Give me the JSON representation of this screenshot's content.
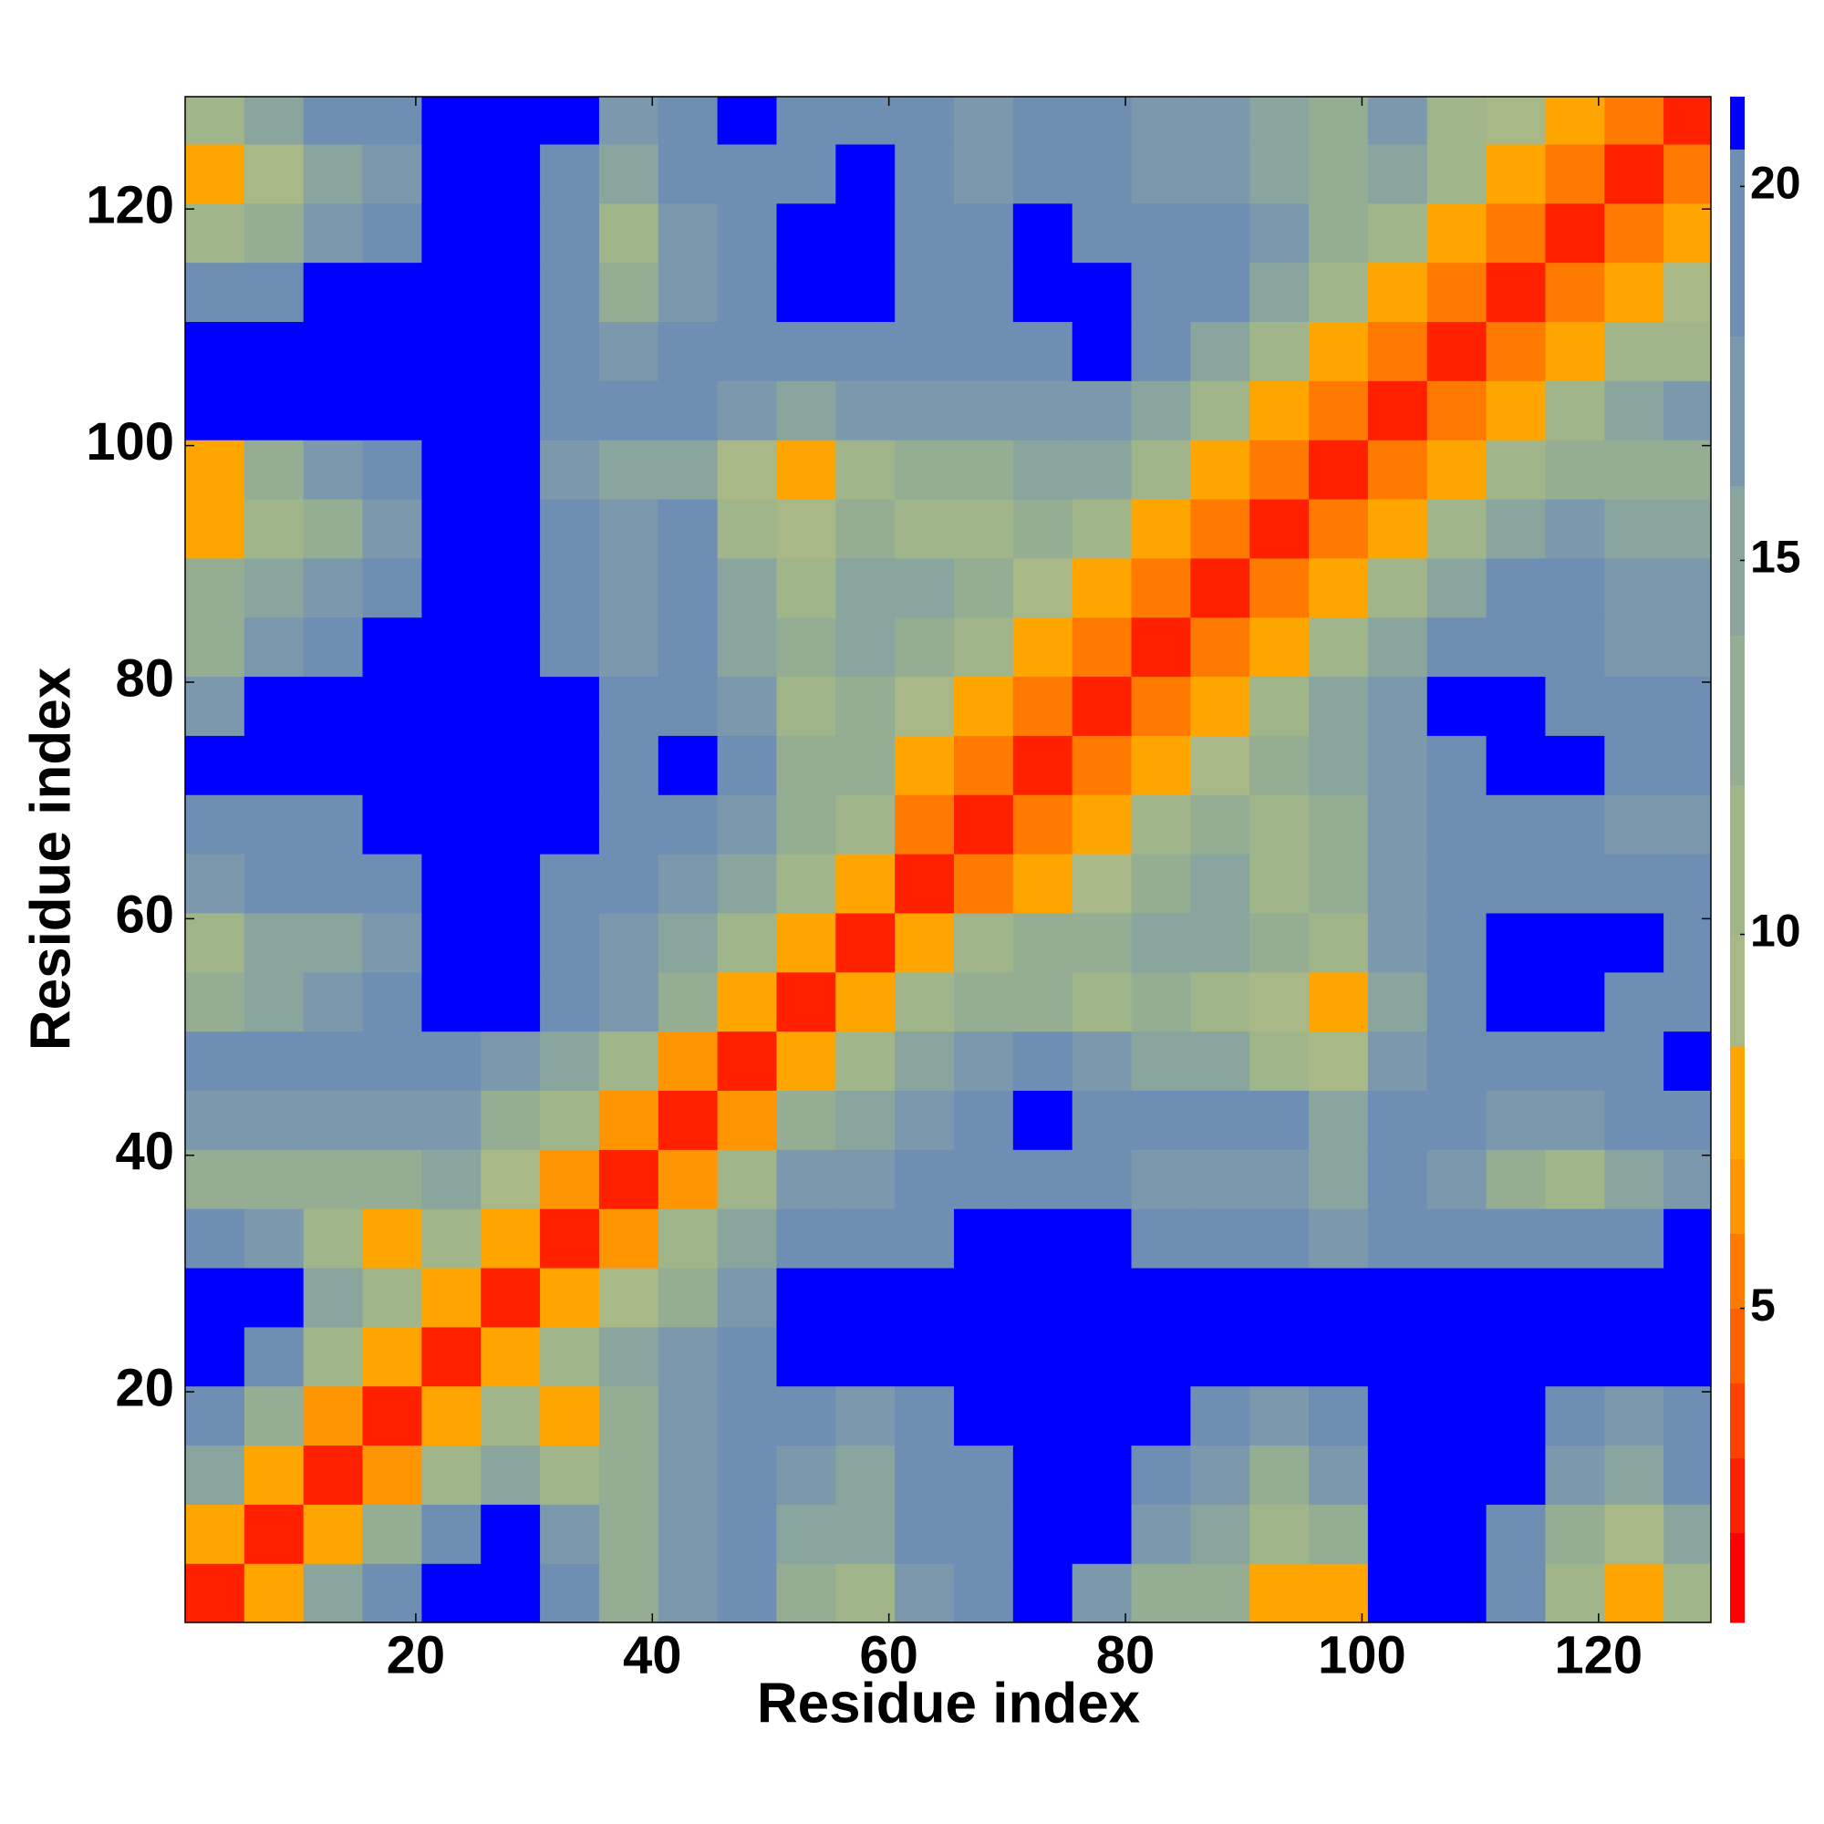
{
  "chart_data": {
    "type": "heatmap",
    "xlabel": "Residue index",
    "ylabel": "Residue index",
    "x": [
      3,
      8,
      13,
      18,
      23,
      28,
      33,
      38,
      43,
      48,
      53,
      58,
      63,
      68,
      73,
      78,
      83,
      88,
      93,
      98,
      103,
      108,
      113,
      118,
      123,
      128
    ],
    "y": [
      3,
      8,
      13,
      18,
      23,
      28,
      33,
      38,
      43,
      48,
      53,
      58,
      63,
      68,
      73,
      78,
      83,
      88,
      93,
      98,
      103,
      108,
      113,
      118,
      123,
      128
    ],
    "xlim": [
      0.5,
      129.5
    ],
    "ylim": [
      0.5,
      129.5
    ],
    "xticks": [
      20,
      40,
      60,
      80,
      100,
      120
    ],
    "yticks": [
      20,
      40,
      60,
      80,
      100,
      120
    ],
    "zlim": [
      0.8,
      21.2
    ],
    "colorbar_ticks": [
      5,
      10,
      15,
      20
    ],
    "levels": [
      0.8,
      2,
      3,
      4,
      5,
      6,
      7,
      8.5,
      10,
      12,
      14,
      16,
      18,
      20.5,
      21.2
    ],
    "colors": [
      "#ff0000",
      "#ff2000",
      "#ff4000",
      "#ff6000",
      "#ff7a00",
      "#ff9500",
      "#ffa500",
      "#a9b887",
      "#a0b58a",
      "#95ad92",
      "#8aa59d",
      "#7b98ac",
      "#6e8eb4",
      "#0000ff"
    ],
    "z": [
      [
        2,
        7,
        15,
        18,
        22,
        22,
        18,
        12,
        16,
        20,
        13,
        11,
        16,
        18,
        21,
        17,
        13,
        12,
        7,
        8,
        22,
        22,
        18,
        11,
        7,
        11
      ],
      [
        7,
        2,
        7,
        12,
        20,
        22,
        17,
        13,
        17,
        20,
        15,
        14,
        18,
        20,
        22,
        21,
        16,
        14,
        10,
        12,
        22,
        22,
        20,
        13,
        9,
        14
      ],
      [
        15,
        7,
        2,
        6,
        10,
        15,
        10,
        12,
        16,
        20,
        16,
        15,
        18,
        20,
        22,
        22,
        20,
        17,
        13,
        16,
        22,
        22,
        22,
        17,
        14,
        18
      ],
      [
        18,
        12,
        6,
        2,
        7,
        10,
        8,
        13,
        17,
        20,
        18,
        17,
        18,
        21,
        22,
        22,
        22,
        20,
        17,
        18,
        22,
        22,
        22,
        19,
        16,
        20
      ],
      [
        22,
        20,
        10,
        7,
        2,
        7,
        11,
        14,
        17,
        20,
        22,
        22,
        22,
        22,
        22,
        22,
        22,
        22,
        22,
        22,
        22,
        22,
        22,
        22,
        21,
        22
      ],
      [
        22,
        22,
        15,
        10,
        7,
        2,
        7,
        9,
        13,
        17,
        22,
        22,
        22,
        22,
        22,
        22,
        22,
        22,
        21,
        22,
        22,
        22,
        22,
        22,
        22,
        22
      ],
      [
        18,
        17,
        10,
        8,
        11,
        7,
        2,
        6,
        10,
        14,
        19,
        20,
        20,
        22,
        22,
        21,
        20,
        19,
        18,
        17,
        20,
        20,
        19,
        18,
        19,
        21
      ],
      [
        12,
        13,
        12,
        13,
        14,
        9,
        6,
        2,
        6,
        10,
        17,
        17,
        18,
        20,
        20,
        18,
        17,
        17,
        16,
        15,
        18,
        16,
        12,
        10,
        14,
        17
      ],
      [
        16,
        17,
        16,
        17,
        17,
        13,
        10,
        6,
        2,
        6,
        12,
        15,
        16,
        20,
        22,
        20,
        20,
        20,
        20,
        15,
        18,
        19,
        17,
        17,
        18,
        20
      ],
      [
        20,
        20,
        20,
        20,
        20,
        17,
        14,
        10,
        6,
        2,
        7,
        11,
        14,
        16,
        18,
        16,
        15,
        14,
        11,
        9,
        16,
        19,
        19,
        20,
        20,
        21
      ],
      [
        13,
        15,
        16,
        18,
        22,
        22,
        19,
        17,
        12,
        7,
        2,
        7,
        11,
        13,
        13,
        11,
        12,
        11,
        9,
        8,
        15,
        20,
        22,
        22,
        20,
        20
      ],
      [
        11,
        14,
        15,
        17,
        22,
        22,
        20,
        17,
        15,
        11,
        7,
        2,
        7,
        10,
        13,
        13,
        15,
        15,
        12,
        11,
        17,
        20,
        22,
        22,
        21,
        19
      ],
      [
        16,
        18,
        18,
        18,
        22,
        22,
        20,
        18,
        16,
        14,
        11,
        7,
        2,
        5,
        8,
        9,
        12,
        14,
        11,
        13,
        17,
        20,
        20,
        20,
        19,
        19
      ],
      [
        18,
        20,
        20,
        21,
        22,
        22,
        22,
        20,
        20,
        16,
        13,
        10,
        5,
        2,
        5,
        7,
        10,
        12,
        11,
        13,
        16,
        19,
        20,
        20,
        17,
        17
      ],
      [
        21,
        22,
        22,
        22,
        22,
        22,
        22,
        20,
        22,
        18,
        13,
        13,
        8,
        5,
        2,
        5,
        7,
        9,
        12,
        14,
        17,
        20,
        21,
        21,
        18,
        18
      ],
      [
        17,
        21,
        22,
        22,
        22,
        22,
        21,
        18,
        20,
        16,
        11,
        13,
        9,
        7,
        5,
        2,
        5,
        7,
        10,
        14,
        17,
        21,
        21,
        20,
        18,
        18
      ],
      [
        13,
        16,
        20,
        22,
        22,
        22,
        20,
        17,
        20,
        15,
        12,
        15,
        12,
        10,
        7,
        5,
        2,
        5,
        8,
        11,
        14,
        18,
        20,
        19,
        17,
        17
      ],
      [
        12,
        14,
        17,
        20,
        22,
        22,
        19,
        17,
        20,
        14,
        11,
        15,
        14,
        12,
        9,
        7,
        5,
        2,
        5,
        8,
        11,
        14,
        18,
        18,
        16,
        17
      ],
      [
        7,
        10,
        13,
        17,
        22,
        21,
        18,
        16,
        20,
        11,
        9,
        12,
        11,
        11,
        12,
        10,
        8,
        5,
        2,
        5,
        8,
        11,
        14,
        16,
        15,
        15
      ],
      [
        8,
        12,
        16,
        18,
        22,
        22,
        17,
        15,
        15,
        9,
        8,
        11,
        13,
        13,
        14,
        14,
        11,
        8,
        5,
        2,
        5,
        8,
        11,
        13,
        13,
        13
      ],
      [
        22,
        22,
        22,
        22,
        22,
        22,
        20,
        18,
        18,
        16,
        15,
        17,
        17,
        16,
        17,
        17,
        14,
        11,
        8,
        5,
        2,
        5,
        8,
        11,
        14,
        17
      ],
      [
        22,
        22,
        22,
        22,
        22,
        22,
        20,
        16,
        19,
        19,
        20,
        20,
        20,
        19,
        20,
        21,
        18,
        14,
        11,
        8,
        5,
        2,
        5,
        8,
        10,
        11
      ],
      [
        18,
        20,
        22,
        22,
        22,
        22,
        19,
        12,
        17,
        19,
        22,
        22,
        20,
        20,
        21,
        21,
        20,
        18,
        14,
        11,
        8,
        5,
        2,
        5,
        8,
        9
      ],
      [
        11,
        13,
        17,
        19,
        22,
        22,
        18,
        10,
        17,
        20,
        22,
        22,
        20,
        20,
        21,
        20,
        19,
        18,
        16,
        13,
        11,
        8,
        5,
        2,
        5,
        8
      ],
      [
        7,
        9,
        14,
        16,
        21,
        22,
        19,
        14,
        18,
        20,
        20,
        21,
        19,
        17,
        18,
        18,
        17,
        16,
        15,
        13,
        14,
        10,
        8,
        5,
        2,
        5
      ],
      [
        11,
        14,
        18,
        20,
        22,
        22,
        21,
        17,
        20,
        21,
        20,
        19,
        19,
        17,
        18,
        18,
        17,
        17,
        15,
        13,
        17,
        11,
        9,
        8,
        5,
        2
      ]
    ]
  }
}
